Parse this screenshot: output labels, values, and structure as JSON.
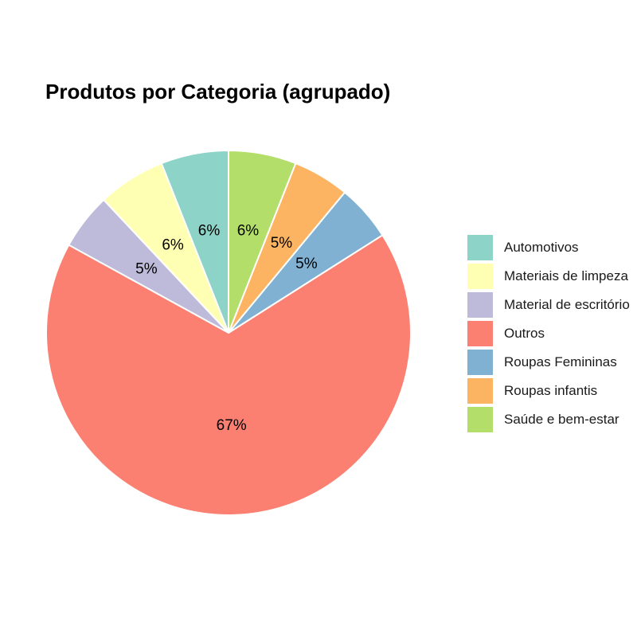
{
  "chart_data": {
    "type": "pie",
    "title": "Produtos por Categoria (agrupado)",
    "categories": [
      "Automotivos",
      "Materiais de limpeza",
      "Material de escritório",
      "Outros",
      "Roupas Femininas",
      "Roupas infantis",
      "Saúde e bem-estar"
    ],
    "values": [
      6,
      6,
      5,
      67,
      5,
      5,
      6
    ],
    "labels": [
      "6%",
      "6%",
      "5%",
      "67%",
      "5%",
      "5%",
      "6%"
    ],
    "colors": [
      "#8DD3C7",
      "#FFFFB3",
      "#BEBADA",
      "#FB8072",
      "#80B1D3",
      "#FDB462",
      "#B3DE69"
    ],
    "start": "top",
    "direction": "counterclockwise",
    "legend": {
      "position": "right"
    }
  }
}
